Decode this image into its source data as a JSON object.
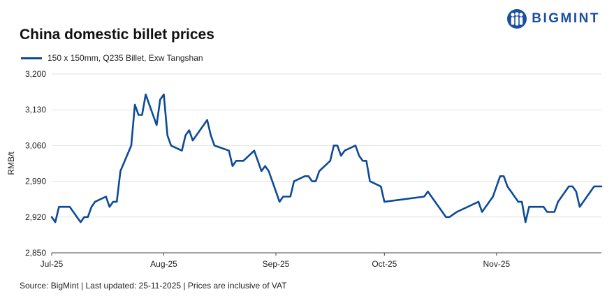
{
  "brand": {
    "name": "BIGMINT",
    "logo_icon": "bigmint-people-icon",
    "color": "#1a4fa0"
  },
  "footer": {
    "source": "Source: BigMint | Last updated: 25-11-2025 | Prices are inclusive of VAT"
  },
  "colors": {
    "series": "#0d4a96",
    "grid": "#e2e2e2",
    "axis": "#444444"
  },
  "chart_data": {
    "type": "line",
    "title": "China domestic billet prices",
    "ylabel": "RMB/t",
    "xlabel": "",
    "ylim": [
      2850,
      3200
    ],
    "yticks": [
      2850,
      2920,
      2990,
      3060,
      3130,
      3200
    ],
    "ytick_labels": [
      "2,850",
      "2,920",
      "2,990",
      "3,060",
      "3,130",
      "3,200"
    ],
    "xlim": [
      "2025-07-01",
      "2025-11-30"
    ],
    "xticks": [
      "2025-07-01",
      "2025-08-01",
      "2025-09-01",
      "2025-10-01",
      "2025-11-01"
    ],
    "xtick_labels": [
      "Jul-25",
      "Aug-25",
      "Sep-25",
      "Oct-25",
      "Nov-25"
    ],
    "grid": "horizontal",
    "legend": "top-left",
    "series": [
      {
        "name": "150 x 150mm, Q235 Billet, Exw Tangshan",
        "color": "#0d4a96",
        "points": [
          [
            "2025-07-01",
            2920
          ],
          [
            "2025-07-02",
            2910
          ],
          [
            "2025-07-03",
            2940
          ],
          [
            "2025-07-06",
            2940
          ],
          [
            "2025-07-09",
            2910
          ],
          [
            "2025-07-10",
            2920
          ],
          [
            "2025-07-11",
            2920
          ],
          [
            "2025-07-12",
            2940
          ],
          [
            "2025-07-13",
            2950
          ],
          [
            "2025-07-16",
            2960
          ],
          [
            "2025-07-17",
            2940
          ],
          [
            "2025-07-18",
            2950
          ],
          [
            "2025-07-19",
            2950
          ],
          [
            "2025-07-20",
            3010
          ],
          [
            "2025-07-23",
            3060
          ],
          [
            "2025-07-24",
            3140
          ],
          [
            "2025-07-25",
            3120
          ],
          [
            "2025-07-26",
            3120
          ],
          [
            "2025-07-27",
            3160
          ],
          [
            "2025-07-30",
            3100
          ],
          [
            "2025-07-31",
            3150
          ],
          [
            "2025-08-01",
            3160
          ],
          [
            "2025-08-02",
            3080
          ],
          [
            "2025-08-03",
            3060
          ],
          [
            "2025-08-06",
            3050
          ],
          [
            "2025-08-07",
            3080
          ],
          [
            "2025-08-08",
            3090
          ],
          [
            "2025-08-09",
            3070
          ],
          [
            "2025-08-12",
            3100
          ],
          [
            "2025-08-13",
            3110
          ],
          [
            "2025-08-14",
            3080
          ],
          [
            "2025-08-15",
            3060
          ],
          [
            "2025-08-19",
            3050
          ],
          [
            "2025-08-20",
            3020
          ],
          [
            "2025-08-21",
            3030
          ],
          [
            "2025-08-23",
            3030
          ],
          [
            "2025-08-26",
            3050
          ],
          [
            "2025-08-27",
            3030
          ],
          [
            "2025-08-28",
            3010
          ],
          [
            "2025-08-29",
            3020
          ],
          [
            "2025-08-30",
            3010
          ],
          [
            "2025-09-02",
            2950
          ],
          [
            "2025-09-03",
            2960
          ],
          [
            "2025-09-05",
            2960
          ],
          [
            "2025-09-06",
            2990
          ],
          [
            "2025-09-09",
            3000
          ],
          [
            "2025-09-10",
            3000
          ],
          [
            "2025-09-11",
            2990
          ],
          [
            "2025-09-12",
            2990
          ],
          [
            "2025-09-13",
            3010
          ],
          [
            "2025-09-16",
            3030
          ],
          [
            "2025-09-17",
            3060
          ],
          [
            "2025-09-18",
            3060
          ],
          [
            "2025-09-19",
            3040
          ],
          [
            "2025-09-20",
            3050
          ],
          [
            "2025-09-23",
            3060
          ],
          [
            "2025-09-24",
            3040
          ],
          [
            "2025-09-25",
            3030
          ],
          [
            "2025-09-26",
            3030
          ],
          [
            "2025-09-27",
            2990
          ],
          [
            "2025-09-30",
            2980
          ],
          [
            "2025-10-01",
            2950
          ],
          [
            "2025-10-12",
            2960
          ],
          [
            "2025-10-13",
            2970
          ],
          [
            "2025-10-18",
            2920
          ],
          [
            "2025-10-19",
            2920
          ],
          [
            "2025-10-21",
            2930
          ],
          [
            "2025-10-27",
            2950
          ],
          [
            "2025-10-28",
            2930
          ],
          [
            "2025-10-31",
            2960
          ],
          [
            "2025-11-02",
            3000
          ],
          [
            "2025-11-03",
            3000
          ],
          [
            "2025-11-04",
            2980
          ],
          [
            "2025-11-07",
            2950
          ],
          [
            "2025-11-08",
            2950
          ],
          [
            "2025-11-09",
            2910
          ],
          [
            "2025-11-10",
            2940
          ],
          [
            "2025-11-14",
            2940
          ],
          [
            "2025-11-15",
            2930
          ],
          [
            "2025-11-17",
            2930
          ],
          [
            "2025-11-18",
            2950
          ],
          [
            "2025-11-21",
            2980
          ],
          [
            "2025-11-22",
            2980
          ],
          [
            "2025-11-23",
            2970
          ],
          [
            "2025-11-24",
            2940
          ],
          [
            "2025-11-28",
            2980
          ],
          [
            "2025-11-30",
            2980
          ]
        ]
      }
    ]
  }
}
